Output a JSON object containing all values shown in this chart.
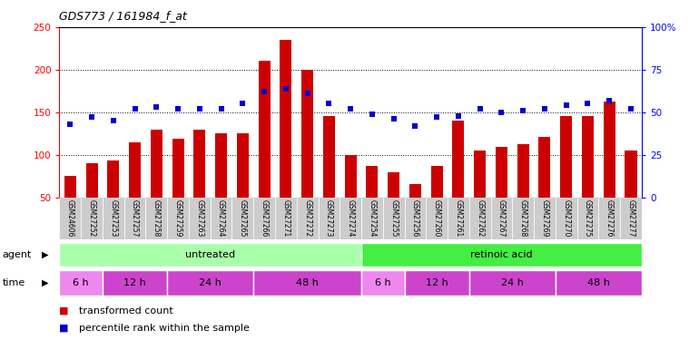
{
  "title": "GDS773 / 161984_f_at",
  "samples": [
    "GSM24606",
    "GSM27252",
    "GSM27253",
    "GSM27257",
    "GSM27258",
    "GSM27259",
    "GSM27263",
    "GSM27264",
    "GSM27265",
    "GSM27266",
    "GSM27271",
    "GSM27272",
    "GSM27273",
    "GSM27274",
    "GSM27254",
    "GSM27255",
    "GSM27256",
    "GSM27260",
    "GSM27261",
    "GSM27262",
    "GSM27267",
    "GSM27268",
    "GSM27269",
    "GSM27270",
    "GSM27275",
    "GSM27276",
    "GSM27277"
  ],
  "bar_values": [
    75,
    90,
    93,
    115,
    130,
    119,
    129,
    125,
    125,
    211,
    235,
    200,
    146,
    100,
    87,
    79,
    65,
    87,
    140,
    105,
    109,
    112,
    121,
    145,
    146,
    163,
    105
  ],
  "dot_values": [
    43,
    47,
    45,
    52,
    53,
    52,
    52,
    52,
    55,
    62,
    64,
    61,
    55,
    52,
    49,
    46,
    42,
    47,
    48,
    52,
    50,
    51,
    52,
    54,
    55,
    57,
    52
  ],
  "bar_color": "#cc0000",
  "dot_color": "#0000cc",
  "ylim_left": [
    50,
    250
  ],
  "ylim_right": [
    0,
    100
  ],
  "yticks_left": [
    50,
    100,
    150,
    200,
    250
  ],
  "yticks_right": [
    0,
    25,
    50,
    75,
    100
  ],
  "ytick_labels_left": [
    "50",
    "100",
    "150",
    "200",
    "250"
  ],
  "ytick_labels_right": [
    "0",
    "25",
    "50",
    "75",
    "100%"
  ],
  "agent_groups": [
    {
      "label": "untreated",
      "start": 0,
      "end": 14,
      "color": "#aaffaa"
    },
    {
      "label": "retinoic acid",
      "start": 14,
      "end": 27,
      "color": "#44ee44"
    }
  ],
  "time_groups": [
    {
      "label": "6 h",
      "start": 0,
      "end": 2,
      "color": "#ee88ee"
    },
    {
      "label": "12 h",
      "start": 2,
      "end": 5,
      "color": "#cc44cc"
    },
    {
      "label": "24 h",
      "start": 5,
      "end": 9,
      "color": "#cc44cc"
    },
    {
      "label": "48 h",
      "start": 9,
      "end": 14,
      "color": "#cc44cc"
    },
    {
      "label": "6 h",
      "start": 14,
      "end": 16,
      "color": "#ee88ee"
    },
    {
      "label": "12 h",
      "start": 16,
      "end": 19,
      "color": "#cc44cc"
    },
    {
      "label": "24 h",
      "start": 19,
      "end": 23,
      "color": "#cc44cc"
    },
    {
      "label": "48 h",
      "start": 23,
      "end": 27,
      "color": "#cc44cc"
    }
  ],
  "agent_label": "agent",
  "time_label": "time",
  "legend_bar": "transformed count",
  "legend_dot": "percentile rank within the sample",
  "bar_bottom": 50,
  "grid_yticks": [
    100,
    150,
    200
  ],
  "bg_color": "#ffffff",
  "tick_label_bg": "#dddddd"
}
